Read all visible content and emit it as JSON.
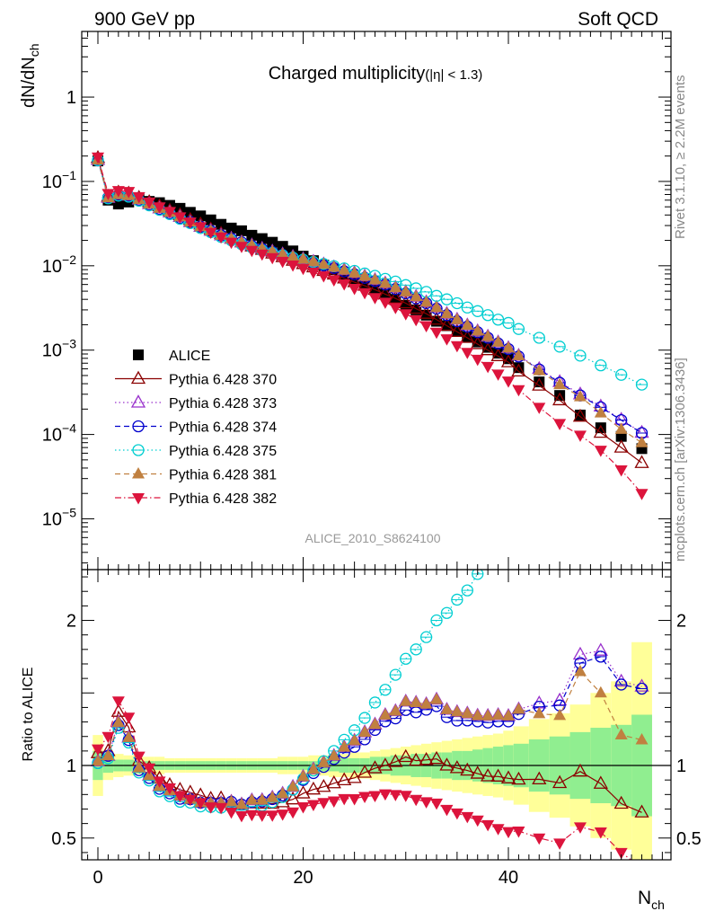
{
  "header": {
    "left": "900 GeV pp",
    "right": "Soft QCD",
    "side_rivet": "Rivet 3.1.10, ≥ 2.2M events",
    "side_mcplots": "mcplots.cern.ch [arXiv:1306.3436]"
  },
  "chart_data": [
    {
      "type": "scatter",
      "title": "Charged multiplicity",
      "title_sub": "(|η| < 1.3)",
      "ylabel_main": "dN/dN",
      "ylabel_sub": "ch",
      "analysis_id": "ALICE_2010_S8624100",
      "yscale": "log",
      "ylim": [
        2.5e-06,
        6
      ],
      "xlim": [
        -1.5,
        55.5
      ],
      "ytick_labels": [
        "1",
        "10",
        "10",
        "10",
        "10",
        "10"
      ],
      "ytick_exponents": [
        "",
        "−1",
        "−2",
        "−3",
        "−4",
        "−5"
      ],
      "legend_placement": "lower-left",
      "x": [
        0,
        1,
        2,
        3,
        4,
        5,
        6,
        7,
        8,
        9,
        10,
        11,
        12,
        13,
        14,
        15,
        16,
        17,
        18,
        19,
        20,
        21,
        22,
        23,
        24,
        25,
        26,
        27,
        28,
        29,
        30,
        31,
        32,
        33,
        34,
        35,
        36,
        37,
        38,
        39,
        40,
        41,
        43,
        45,
        47,
        49,
        51,
        53
      ],
      "series": [
        {
          "name": "ALICE",
          "color": "#000000",
          "marker": "square",
          "line": "none",
          "y": [
            0.175,
            0.06,
            0.054,
            0.057,
            0.062,
            0.058,
            0.056,
            0.052,
            0.048,
            0.043,
            0.039,
            0.035,
            0.031,
            0.028,
            0.026,
            0.023,
            0.021,
            0.019,
            0.017,
            0.015,
            0.013,
            0.0115,
            0.0102,
            0.009,
            0.0079,
            0.007,
            0.0061,
            0.0053,
            0.0046,
            0.004,
            0.0034,
            0.003,
            0.0026,
            0.0022,
            0.00195,
            0.00168,
            0.00145,
            0.00125,
            0.00108,
            0.00092,
            0.00079,
            0.00062,
            0.00042,
            0.00029,
            0.00017,
            0.00012,
            9.5e-05,
            6.8e-05
          ]
        },
        {
          "name": "Pythia 6.428 370",
          "color": "#8b0000",
          "marker": "triangle-open",
          "line": "solid",
          "y": [
            0.19,
            0.066,
            0.074,
            0.072,
            0.064,
            0.057,
            0.051,
            0.045,
            0.04,
            0.035,
            0.031,
            0.027,
            0.024,
            0.021,
            0.019,
            0.017,
            0.0155,
            0.014,
            0.0127,
            0.0115,
            0.0105,
            0.0096,
            0.0087,
            0.0079,
            0.0071,
            0.0064,
            0.0058,
            0.0052,
            0.0046,
            0.0041,
            0.0036,
            0.0031,
            0.0027,
            0.0023,
            0.00195,
            0.00165,
            0.0014,
            0.00118,
            0.001,
            0.00085,
            0.00072,
            0.00056,
            0.00038,
            0.000255,
            0.000163,
            0.000105,
            7e-05,
            4.6e-05
          ]
        },
        {
          "name": "Pythia 6.428 373",
          "color": "#9932cc",
          "marker": "triangle-open",
          "line": "dotted",
          "y": [
            0.18,
            0.064,
            0.07,
            0.068,
            0.061,
            0.054,
            0.048,
            0.043,
            0.038,
            0.033,
            0.029,
            0.026,
            0.023,
            0.021,
            0.019,
            0.0175,
            0.016,
            0.0148,
            0.0137,
            0.0128,
            0.012,
            0.0112,
            0.0104,
            0.0096,
            0.0089,
            0.0082,
            0.0075,
            0.0068,
            0.0062,
            0.0055,
            0.0049,
            0.0043,
            0.0037,
            0.0032,
            0.0027,
            0.0023,
            0.00197,
            0.00168,
            0.00145,
            0.00124,
            0.00106,
            0.00086,
            0.0006,
            0.00042,
            0.0003,
            0.000215,
            0.00015,
            0.000105
          ]
        },
        {
          "name": "Pythia 6.428 374",
          "color": "#0000cd",
          "marker": "circle-open",
          "line": "dashed",
          "y": [
            0.178,
            0.064,
            0.069,
            0.067,
            0.06,
            0.053,
            0.047,
            0.042,
            0.037,
            0.033,
            0.029,
            0.026,
            0.023,
            0.021,
            0.019,
            0.0172,
            0.0158,
            0.0146,
            0.0135,
            0.0125,
            0.0117,
            0.0109,
            0.0101,
            0.0094,
            0.0086,
            0.0079,
            0.0072,
            0.0066,
            0.006,
            0.0053,
            0.0047,
            0.0041,
            0.0036,
            0.0031,
            0.0026,
            0.0022,
            0.0019,
            0.00163,
            0.0014,
            0.0012,
            0.00103,
            0.00084,
            0.00059,
            0.00041,
            0.00029,
            0.00021,
            0.000148,
            0.000104
          ]
        },
        {
          "name": "Pythia 6.428 375",
          "color": "#00ced1",
          "marker": "circle-open",
          "line": "dotted",
          "y": [
            0.178,
            0.063,
            0.068,
            0.066,
            0.059,
            0.052,
            0.046,
            0.041,
            0.036,
            0.032,
            0.028,
            0.025,
            0.022,
            0.02,
            0.018,
            0.0165,
            0.0152,
            0.0142,
            0.0133,
            0.0125,
            0.0118,
            0.0111,
            0.0105,
            0.0099,
            0.0093,
            0.0087,
            0.0081,
            0.0076,
            0.007,
            0.0065,
            0.0059,
            0.0054,
            0.0049,
            0.0044,
            0.004,
            0.0036,
            0.0032,
            0.0029,
            0.0026,
            0.0023,
            0.0021,
            0.00178,
            0.0014,
            0.0011,
            0.00086,
            0.00066,
            0.00051,
            0.00039
          ]
        },
        {
          "name": "Pythia 6.428 381",
          "color": "#c08040",
          "marker": "triangle-filled",
          "line": "dashed",
          "y": [
            0.18,
            0.064,
            0.07,
            0.068,
            0.061,
            0.054,
            0.048,
            0.043,
            0.038,
            0.033,
            0.029,
            0.026,
            0.023,
            0.021,
            0.019,
            0.0175,
            0.016,
            0.0148,
            0.0137,
            0.0128,
            0.012,
            0.0112,
            0.0104,
            0.0096,
            0.0089,
            0.0082,
            0.0075,
            0.0068,
            0.0062,
            0.0055,
            0.0049,
            0.0043,
            0.0037,
            0.0032,
            0.0027,
            0.0023,
            0.00197,
            0.00168,
            0.00145,
            0.00124,
            0.00106,
            0.00086,
            0.00057,
            0.00039,
            0.00028,
            0.00018,
            0.000115,
            8e-05
          ]
        },
        {
          "name": "Pythia 6.428 382",
          "color": "#dc143c",
          "marker": "triangle-down-filled",
          "line": "dashdot",
          "y": [
            0.195,
            0.072,
            0.078,
            0.076,
            0.066,
            0.057,
            0.05,
            0.044,
            0.038,
            0.033,
            0.029,
            0.025,
            0.022,
            0.019,
            0.017,
            0.0152,
            0.0138,
            0.0125,
            0.0113,
            0.0102,
            0.0093,
            0.0084,
            0.0076,
            0.0068,
            0.0061,
            0.0054,
            0.0048,
            0.0042,
            0.0037,
            0.0032,
            0.0027,
            0.0023,
            0.00195,
            0.00163,
            0.00136,
            0.00113,
            0.00094,
            0.00078,
            0.00064,
            0.00052,
            0.00043,
            0.00034,
            0.00021,
            0.000135,
            9.8e-05,
            6.5e-05,
            3.8e-05,
            2e-05
          ]
        }
      ]
    },
    {
      "type": "scatter",
      "ylabel": "Ratio to ALICE",
      "xlabel_main": "N",
      "xlabel_sub": "ch",
      "ylim": [
        0.35,
        2.35
      ],
      "yticks": [
        0.5,
        1,
        2
      ],
      "ytick_labels": [
        "0.5",
        "1",
        "2"
      ],
      "xticks": [
        0,
        20,
        40
      ],
      "xtick_labels": [
        "0",
        "20",
        "40"
      ],
      "reference_line": 1,
      "bands": {
        "inner_color": "#90ee90",
        "outer_color": "#ffff99",
        "x_edges": [
          -0.5,
          0.5,
          1.5,
          2.5,
          3.5,
          4.5,
          5.5,
          6.5,
          7.5,
          8.5,
          9.5,
          10.5,
          11.5,
          12.5,
          13.5,
          14.5,
          15.5,
          16.5,
          17.5,
          18.5,
          19.5,
          20.5,
          21.5,
          22.5,
          23.5,
          24.5,
          25.5,
          26.5,
          27.5,
          28.5,
          29.5,
          30.5,
          31.5,
          32.5,
          33.5,
          34.5,
          35.5,
          36.5,
          37.5,
          38.5,
          39.5,
          40.5,
          42,
          44,
          46,
          48,
          50,
          52,
          54
        ],
        "inner": [
          0.1,
          0.05,
          0.04,
          0.04,
          0.03,
          0.03,
          0.03,
          0.03,
          0.03,
          0.03,
          0.03,
          0.03,
          0.03,
          0.03,
          0.03,
          0.03,
          0.03,
          0.03,
          0.03,
          0.03,
          0.03,
          0.03,
          0.04,
          0.04,
          0.05,
          0.05,
          0.05,
          0.06,
          0.06,
          0.07,
          0.07,
          0.08,
          0.08,
          0.09,
          0.09,
          0.1,
          0.1,
          0.11,
          0.12,
          0.13,
          0.14,
          0.15,
          0.18,
          0.2,
          0.23,
          0.26,
          0.28,
          0.35
        ],
        "outer": [
          0.21,
          0.1,
          0.08,
          0.07,
          0.06,
          0.06,
          0.06,
          0.05,
          0.05,
          0.05,
          0.05,
          0.05,
          0.05,
          0.05,
          0.05,
          0.05,
          0.05,
          0.05,
          0.06,
          0.06,
          0.06,
          0.07,
          0.07,
          0.08,
          0.08,
          0.09,
          0.09,
          0.1,
          0.11,
          0.12,
          0.13,
          0.14,
          0.15,
          0.16,
          0.17,
          0.18,
          0.19,
          0.2,
          0.21,
          0.22,
          0.24,
          0.27,
          0.32,
          0.36,
          0.42,
          0.5,
          0.58,
          0.85
        ]
      }
    }
  ]
}
